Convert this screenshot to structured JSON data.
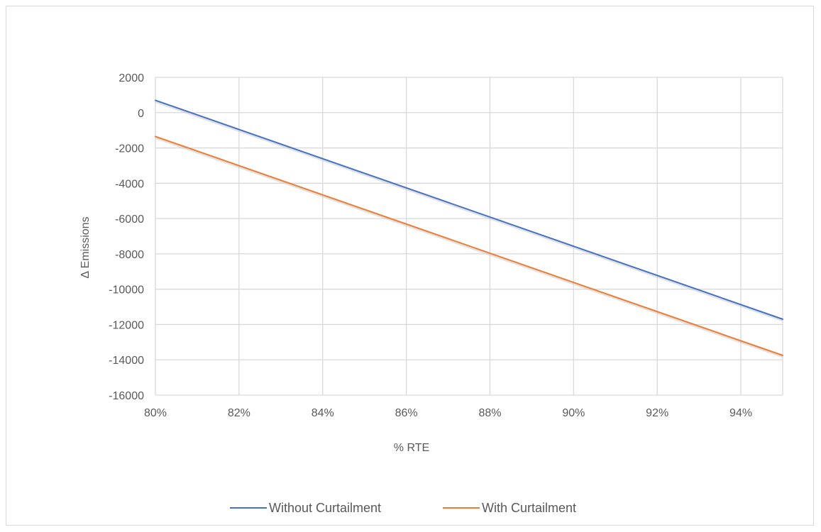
{
  "chart_data": {
    "type": "line",
    "title": "",
    "xlabel": "% RTE",
    "ylabel": "Δ Emissions",
    "x": [
      0.8,
      0.95
    ],
    "x_tick_values": [
      0.8,
      0.82,
      0.84,
      0.86,
      0.88,
      0.9,
      0.92,
      0.94
    ],
    "x_tick_labels": [
      "80%",
      "82%",
      "84%",
      "86%",
      "88%",
      "90%",
      "92%",
      "94%"
    ],
    "xlim": [
      0.8,
      0.95
    ],
    "y_tick_values": [
      2000,
      0,
      -2000,
      -4000,
      -6000,
      -8000,
      -10000,
      -12000,
      -14000,
      -16000
    ],
    "y_tick_labels": [
      "2000",
      "0",
      "-2000",
      "-4000",
      "-6000",
      "-8000",
      "-10000",
      "-12000",
      "-14000",
      "-16000"
    ],
    "ylim": [
      -16000,
      2000
    ],
    "grid": true,
    "legend_position": "bottom",
    "series": [
      {
        "name": "Without Curtailment",
        "color": "#4472C4",
        "values": [
          700,
          -11700
        ]
      },
      {
        "name": "With Curtailment",
        "color": "#ED7D31",
        "values": [
          -1350,
          -13750
        ]
      }
    ]
  }
}
